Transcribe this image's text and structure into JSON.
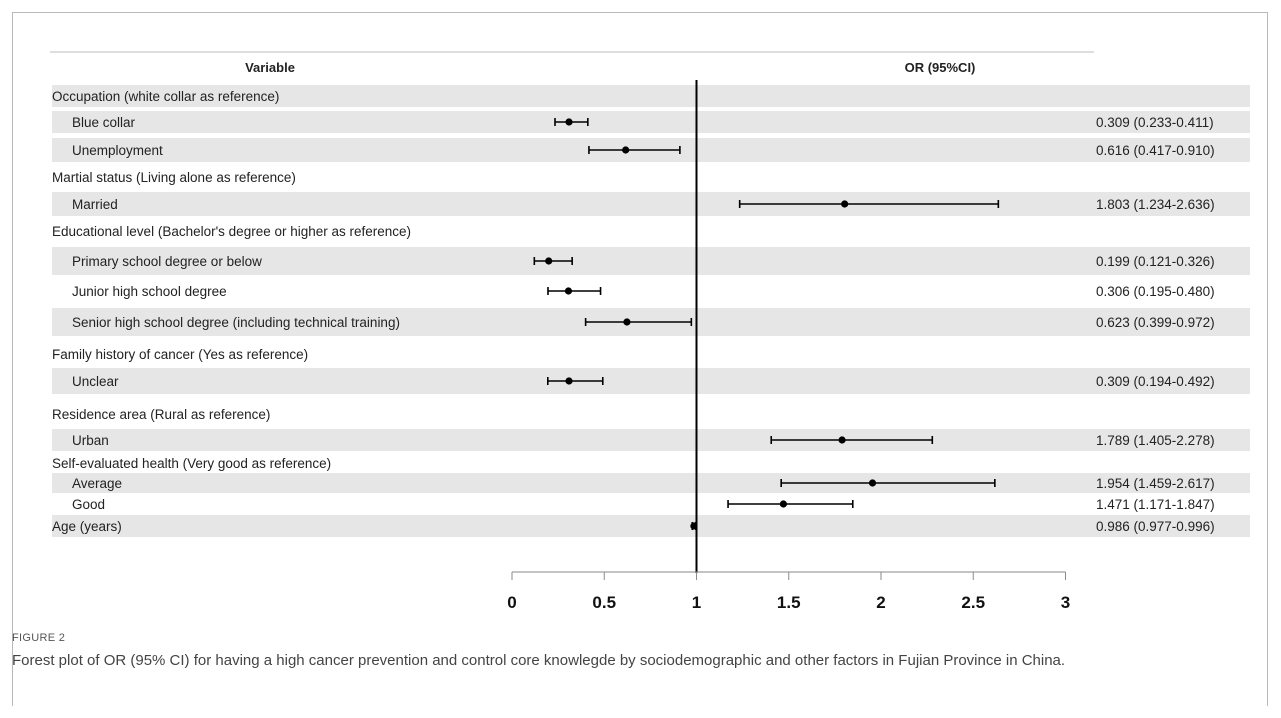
{
  "header": {
    "variable": "Variable",
    "or": "OR (95%CI)"
  },
  "chart_data": {
    "type": "forest",
    "reference_line": 1,
    "xlim": [
      0,
      3
    ],
    "xticks": [
      "0",
      "0.5",
      "1",
      "1.5",
      "2",
      "2.5",
      "3"
    ],
    "rows": [
      {
        "label": "Occupation (white collar as reference)",
        "group": true
      },
      {
        "label": "Blue collar",
        "or": 0.309,
        "lo": 0.233,
        "hi": 0.411,
        "text": "0.309 (0.233-0.411)"
      },
      {
        "label": "Unemployment",
        "or": 0.616,
        "lo": 0.417,
        "hi": 0.91,
        "text": "0.616 (0.417-0.910)"
      },
      {
        "label": "Martial status (Living alone as reference)",
        "group": true
      },
      {
        "label": "Married",
        "or": 1.803,
        "lo": 1.234,
        "hi": 2.636,
        "text": "1.803 (1.234-2.636)"
      },
      {
        "label": "Educational level (Bachelor's degree or higher as reference)",
        "group": true
      },
      {
        "label": "Primary school degree or below",
        "or": 0.199,
        "lo": 0.121,
        "hi": 0.326,
        "text": "0.199 (0.121-0.326)"
      },
      {
        "label": "Junior high school degree",
        "or": 0.306,
        "lo": 0.195,
        "hi": 0.48,
        "text": "0.306 (0.195-0.480)"
      },
      {
        "label": "Senior high school degree (including technical training)",
        "or": 0.623,
        "lo": 0.399,
        "hi": 0.972,
        "text": "0.623 (0.399-0.972)"
      },
      {
        "label": "Family history of cancer (Yes as reference)",
        "group": true
      },
      {
        "label": "Unclear",
        "or": 0.309,
        "lo": 0.194,
        "hi": 0.492,
        "text": "0.309 (0.194-0.492)"
      },
      {
        "label": "Residence area (Rural as reference)",
        "group": true
      },
      {
        "label": "Urban",
        "or": 1.789,
        "lo": 1.405,
        "hi": 2.278,
        "text": "1.789 (1.405-2.278)"
      },
      {
        "label": "Self-evaluated health (Very good as reference)",
        "group": true
      },
      {
        "label": "Average",
        "or": 1.954,
        "lo": 1.459,
        "hi": 2.617,
        "text": "1.954 (1.459-2.617)"
      },
      {
        "label": "Good",
        "or": 1.471,
        "lo": 1.171,
        "hi": 1.847,
        "text": "1.471 (1.171-1.847)"
      },
      {
        "label": "Age (years)",
        "group": true,
        "or": 0.986,
        "lo": 0.977,
        "hi": 0.996,
        "text": "0.986 (0.977-0.996)"
      }
    ]
  },
  "caption": {
    "label": "FIGURE 2",
    "text": "Forest plot of OR (95% CI) for having a high cancer prevention and control core knowlegde by sociodemographic and other factors in Fujian Province in China."
  }
}
